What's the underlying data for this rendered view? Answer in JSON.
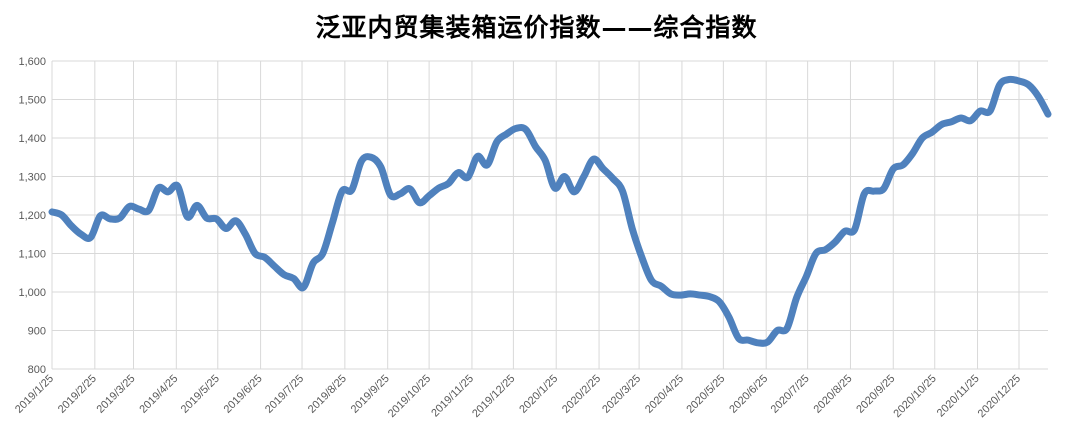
{
  "chart_data": {
    "type": "line",
    "title": "泛亚内贸集装箱运价指数——综合指数",
    "xlabel": "",
    "ylabel": "",
    "ylim": [
      800,
      1600
    ],
    "y_ticks": [
      "800",
      "900",
      "1,000",
      "1,100",
      "1,200",
      "1,300",
      "1,400",
      "1,500",
      "1,600"
    ],
    "y_tick_values": [
      800,
      900,
      1000,
      1100,
      1200,
      1300,
      1400,
      1500,
      1600
    ],
    "x_tick_labels": [
      "2019/1/25",
      "2019/2/25",
      "2019/3/25",
      "2019/4/25",
      "2019/5/25",
      "2019/6/25",
      "2019/7/25",
      "2019/8/25",
      "2019/9/25",
      "2019/10/25",
      "2019/11/25",
      "2019/12/25",
      "2020/1/25",
      "2020/2/25",
      "2020/3/25",
      "2020/4/25",
      "2020/5/25",
      "2020/6/25",
      "2020/7/25",
      "2020/8/25",
      "2020/9/25",
      "2020/10/25",
      "2020/11/25",
      "2020/12/25"
    ],
    "grid": true,
    "legend": "none",
    "line_color": "#4f81bd",
    "series": [
      {
        "name": "",
        "x": [
          "2019-01-25",
          "2019-02-01",
          "2019-02-08",
          "2019-02-15",
          "2019-02-22",
          "2019-03-01",
          "2019-03-08",
          "2019-03-15",
          "2019-03-22",
          "2019-03-29",
          "2019-04-05",
          "2019-04-12",
          "2019-04-19",
          "2019-04-26",
          "2019-05-03",
          "2019-05-10",
          "2019-05-17",
          "2019-05-24",
          "2019-05-31",
          "2019-06-07",
          "2019-06-14",
          "2019-06-21",
          "2019-06-28",
          "2019-07-05",
          "2019-07-12",
          "2019-07-19",
          "2019-07-26",
          "2019-08-02",
          "2019-08-09",
          "2019-08-16",
          "2019-08-23",
          "2019-08-30",
          "2019-09-06",
          "2019-09-13",
          "2019-09-20",
          "2019-09-27",
          "2019-10-04",
          "2019-10-11",
          "2019-10-18",
          "2019-10-25",
          "2019-11-01",
          "2019-11-08",
          "2019-11-15",
          "2019-11-22",
          "2019-11-29",
          "2019-12-06",
          "2019-12-13",
          "2019-12-20",
          "2019-12-27",
          "2020-01-03",
          "2020-01-10",
          "2020-01-17",
          "2020-01-24",
          "2020-01-31",
          "2020-02-07",
          "2020-02-14",
          "2020-02-21",
          "2020-02-28",
          "2020-03-06",
          "2020-03-13",
          "2020-03-20",
          "2020-03-27",
          "2020-04-03",
          "2020-04-10",
          "2020-04-17",
          "2020-04-24",
          "2020-05-01",
          "2020-05-08",
          "2020-05-15",
          "2020-05-22",
          "2020-05-29",
          "2020-06-05",
          "2020-06-12",
          "2020-06-19",
          "2020-06-26",
          "2020-07-03",
          "2020-07-10",
          "2020-07-17",
          "2020-07-24",
          "2020-07-31",
          "2020-08-07",
          "2020-08-14",
          "2020-08-21",
          "2020-08-28",
          "2020-09-04",
          "2020-09-11",
          "2020-09-18",
          "2020-09-25",
          "2020-10-02",
          "2020-10-09",
          "2020-10-16",
          "2020-10-23",
          "2020-10-30",
          "2020-11-06",
          "2020-11-13",
          "2020-11-20",
          "2020-11-27",
          "2020-12-04",
          "2020-12-11",
          "2020-12-18",
          "2020-12-25",
          "2021-01-01",
          "2021-01-08",
          "2021-01-15"
        ],
        "values": [
          1208,
          1200,
          1172,
          1150,
          1142,
          1198,
          1190,
          1192,
          1222,
          1215,
          1212,
          1270,
          1260,
          1275,
          1195,
          1225,
          1192,
          1190,
          1165,
          1185,
          1150,
          1100,
          1090,
          1067,
          1045,
          1035,
          1012,
          1075,
          1100,
          1180,
          1262,
          1265,
          1340,
          1350,
          1325,
          1252,
          1255,
          1268,
          1232,
          1250,
          1270,
          1282,
          1310,
          1298,
          1352,
          1330,
          1390,
          1410,
          1425,
          1422,
          1378,
          1342,
          1270,
          1300,
          1260,
          1300,
          1345,
          1320,
          1295,
          1262,
          1165,
          1090,
          1030,
          1015,
          995,
          992,
          995,
          992,
          988,
          975,
          935,
          880,
          875,
          868,
          870,
          900,
          905,
          985,
          1040,
          1100,
          1110,
          1130,
          1158,
          1162,
          1255,
          1262,
          1268,
          1320,
          1330,
          1360,
          1400,
          1415,
          1435,
          1442,
          1452,
          1445,
          1470,
          1470,
          1538,
          1552,
          1548,
          1538,
          1508,
          1462
        ]
      }
    ]
  }
}
